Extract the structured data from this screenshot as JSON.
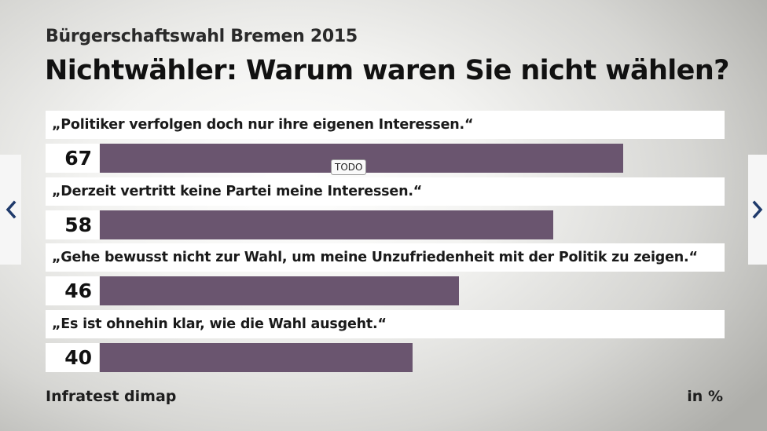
{
  "subtitle": "Bürgerschaftswahl Bremen 2015",
  "title": "Nichtwähler: Warum waren Sie nicht wählen?",
  "todo_label": "TODO",
  "source": "Infratest dimap",
  "unit": "in %",
  "nav": {
    "prev_icon": "chevron-left-icon",
    "next_icon": "chevron-right-icon"
  },
  "colors": {
    "bar": "#6a556f",
    "nav_arrow": "#1f3a6b"
  },
  "chart_data": {
    "type": "bar",
    "orientation": "horizontal",
    "categories": [
      "„Politiker verfolgen doch nur ihre eigenen Interessen.“",
      "„Derzeit vertritt keine Partei meine Interessen.“",
      "„Gehe bewusst nicht zur Wahl, um meine Unzufriedenheit mit der Politik zu zeigen.“",
      "„Es ist ohnehin klar, wie die Wahl ausgeht.“"
    ],
    "values": [
      67,
      58,
      46,
      40
    ],
    "title": "Nichtwähler: Warum waren Sie nicht wählen?",
    "subtitle": "Bürgerschaftswahl Bremen 2015",
    "xlim": [
      0,
      80
    ],
    "unit": "in %",
    "grid": false,
    "legend": "none"
  }
}
